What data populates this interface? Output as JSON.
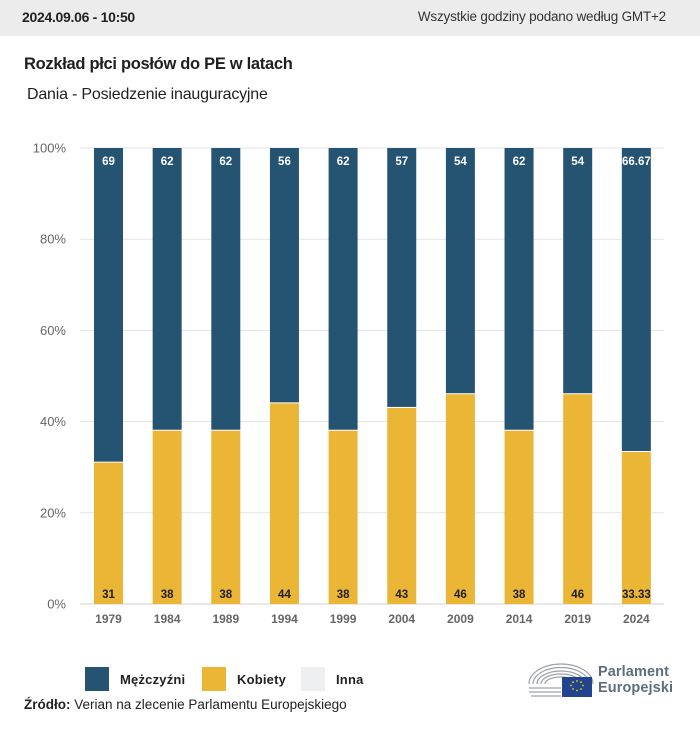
{
  "header": {
    "datetime": "2024.09.06 - 10:50",
    "timezone_note": "Wszystkie godziny podano według GMT+2"
  },
  "title": "Rozkład płci posłów do PE w latach",
  "subtitle": "Dania - Posiedzenie inauguracyjne",
  "colors": {
    "men": "#255372",
    "women": "#ebb536",
    "other": "#eeeff1",
    "grid": "#e3e3e3",
    "axis_text": "#666666",
    "label_light": "#ffffff",
    "label_dark": "#1f1f1f"
  },
  "legend": [
    {
      "label": "Mężczyźni",
      "color_key": "men"
    },
    {
      "label": "Kobiety",
      "color_key": "women"
    },
    {
      "label": "Inna",
      "color_key": "other"
    }
  ],
  "source": {
    "label": "Źródło:",
    "text": "Verian na zlecenie Parlamentu Europejskiego"
  },
  "logo": {
    "line1": "Parlament",
    "line2": "Europejski"
  },
  "chart_data": {
    "type": "bar",
    "stacked": true,
    "title": "Rozkład płci posłów do PE w latach",
    "subtitle": "Dania - Posiedzenie inauguracyjne",
    "xlabel": "",
    "ylabel": "",
    "categories": [
      "1979",
      "1984",
      "1989",
      "1994",
      "1999",
      "2004",
      "2009",
      "2014",
      "2019",
      "2024"
    ],
    "series": [
      {
        "name": "Kobiety",
        "color_key": "women",
        "values": [
          31,
          38,
          38,
          44,
          38,
          43,
          46,
          38,
          46,
          33.33
        ],
        "labels": [
          "31",
          "38",
          "38",
          "44",
          "38",
          "43",
          "46",
          "38",
          "46",
          "33.33"
        ]
      },
      {
        "name": "Mężczyźni",
        "color_key": "men",
        "values": [
          69,
          62,
          62,
          56,
          62,
          57,
          54,
          62,
          54,
          66.67
        ],
        "labels": [
          "69",
          "62",
          "62",
          "56",
          "62",
          "57",
          "54",
          "62",
          "54",
          "66.67"
        ]
      },
      {
        "name": "Inna",
        "color_key": "other",
        "values": [
          0,
          0,
          0,
          0,
          0,
          0,
          0,
          0,
          0,
          0
        ]
      }
    ],
    "ylim": [
      0,
      100
    ],
    "yticks": [
      0,
      20,
      40,
      60,
      80,
      100
    ],
    "ytick_labels": [
      "0%",
      "20%",
      "40%",
      "60%",
      "80%",
      "100%"
    ],
    "grid": true,
    "legend_position": "bottom-left"
  }
}
